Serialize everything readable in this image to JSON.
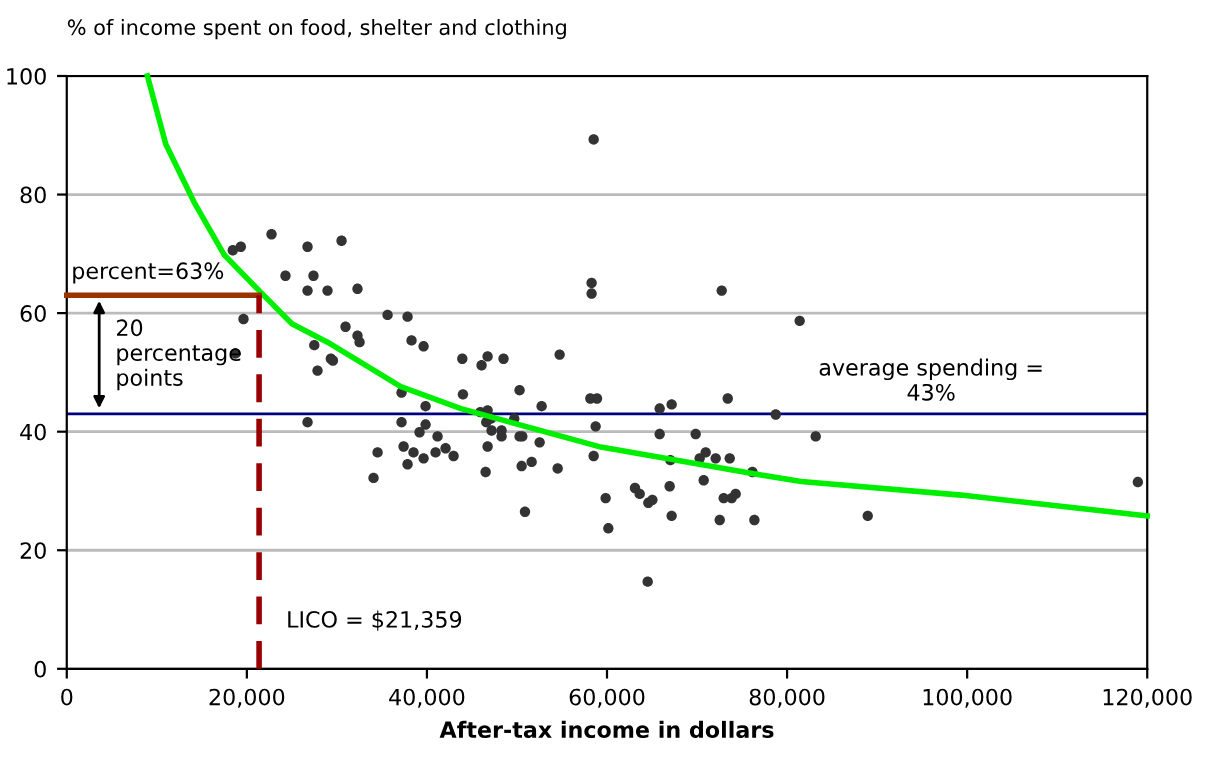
{
  "chart_data": {
    "type": "scatter",
    "ylabel": "% of income spent on food, shelter and clothing",
    "xlabel": "After-tax income in dollars",
    "xlim": [
      0,
      120000
    ],
    "ylim": [
      0,
      100
    ],
    "xticks": [
      0,
      {
        "value": 20000,
        "label": "20,000"
      },
      {
        "value": 40000,
        "label": "40,000"
      },
      {
        "value": 60000,
        "label": "60,000"
      },
      {
        "value": 80000,
        "label": "80,000"
      },
      {
        "value": 100000,
        "label": "100,000"
      },
      {
        "value": 120000,
        "label": "120,000"
      }
    ],
    "yticks": [
      0,
      20,
      40,
      60,
      80,
      100
    ],
    "grid": "y",
    "legend": false,
    "marker": "circle",
    "series": [
      {
        "color": "#333333",
        "x": [
          18440,
          19330,
          22740,
          26740,
          30520,
          24290,
          27400,
          26740,
          28960,
          32290,
          19630,
          18740,
          27490,
          27850,
          29330,
          29560,
          30960,
          32290,
          32520,
          35630,
          37850,
          38290,
          39630,
          37180,
          26740,
          37180,
          39850,
          39850,
          39180,
          41180,
          34520,
          37410,
          38510,
          37850,
          39630,
          40960,
          42070,
          42960,
          34070,
          43930,
          44000,
          46070,
          46740,
          48510,
          54740,
          50290,
          45930,
          46740,
          46590,
          47110,
          47180,
          48290,
          48290,
          49700,
          50290,
          50590,
          52740,
          46740,
          52520,
          46520,
          50520,
          51630,
          54520,
          50890,
          58520,
          58290,
          58290,
          58150,
          58890,
          58740,
          58520,
          59850,
          60150,
          63110,
          63630,
          64590,
          65040,
          64520,
          65850,
          67180,
          65850,
          67040,
          66960,
          67180,
          72740,
          73410,
          69850,
          70960,
          70290,
          72070,
          73630,
          70740,
          76150,
          72960,
          73850,
          74290,
          72520,
          76370,
          78740,
          81400,
          83180,
          88960,
          118960
        ],
        "values": [
          70.6,
          71.2,
          73.3,
          71.2,
          72.2,
          66.3,
          66.3,
          63.8,
          63.8,
          64.1,
          59.0,
          53.2,
          54.6,
          50.3,
          52.3,
          52.0,
          57.7,
          56.2,
          55.1,
          59.7,
          59.4,
          55.4,
          54.4,
          46.6,
          41.6,
          41.6,
          44.3,
          41.2,
          39.9,
          39.2,
          36.5,
          37.5,
          36.5,
          34.5,
          35.5,
          36.5,
          37.2,
          35.9,
          32.2,
          52.3,
          46.3,
          51.2,
          52.7,
          52.3,
          53.0,
          47.0,
          43.3,
          43.6,
          41.6,
          42.2,
          40.2,
          40.2,
          39.2,
          42.2,
          39.2,
          39.2,
          44.3,
          37.5,
          38.2,
          33.2,
          34.2,
          34.9,
          33.8,
          26.5,
          89.3,
          65.1,
          63.3,
          45.6,
          45.6,
          40.9,
          35.9,
          28.8,
          23.7,
          30.5,
          29.5,
          28.0,
          28.5,
          14.7,
          43.9,
          44.6,
          39.6,
          35.2,
          30.8,
          25.8,
          63.8,
          45.6,
          39.6,
          36.5,
          35.5,
          35.5,
          35.5,
          31.8,
          33.2,
          28.8,
          28.8,
          29.5,
          25.1,
          25.1,
          42.9,
          58.7,
          39.2,
          25.8,
          31.5
        ]
      },
      {
        "type": "line",
        "color": "#00ee00",
        "marker": "none",
        "line_style": "solid",
        "x": [
          8960,
          11000,
          14150,
          17500,
          21556,
          25000,
          28960,
          37100,
          43780,
          59330,
          77100,
          81560,
          99330,
          120000
        ],
        "values": [
          100,
          88.5,
          78.7,
          69.8,
          63.5,
          58.2,
          55.1,
          47.6,
          43.9,
          37.4,
          32.7,
          31.6,
          29.3,
          25.8
        ]
      },
      {
        "type": "line",
        "color": "#993300",
        "marker": "none",
        "line_style": "solid",
        "x": [
          0,
          21359
        ],
        "values": [
          63,
          63
        ]
      },
      {
        "type": "line",
        "color": "#990000",
        "marker": "none",
        "line_style": "dashed",
        "x": [
          21359,
          21359
        ],
        "values": [
          0,
          63
        ]
      }
    ],
    "ref_lines": [
      {
        "axis": "y",
        "value": 43,
        "label": "average spending =\n43%",
        "color": "#000080"
      }
    ],
    "annotations": [
      {
        "text": "percent=63%",
        "x": 0,
        "y": 63
      },
      {
        "text": "LICO = $21,359",
        "x": 21359,
        "y": 0
      },
      "20\npercentage\npoints"
    ]
  }
}
